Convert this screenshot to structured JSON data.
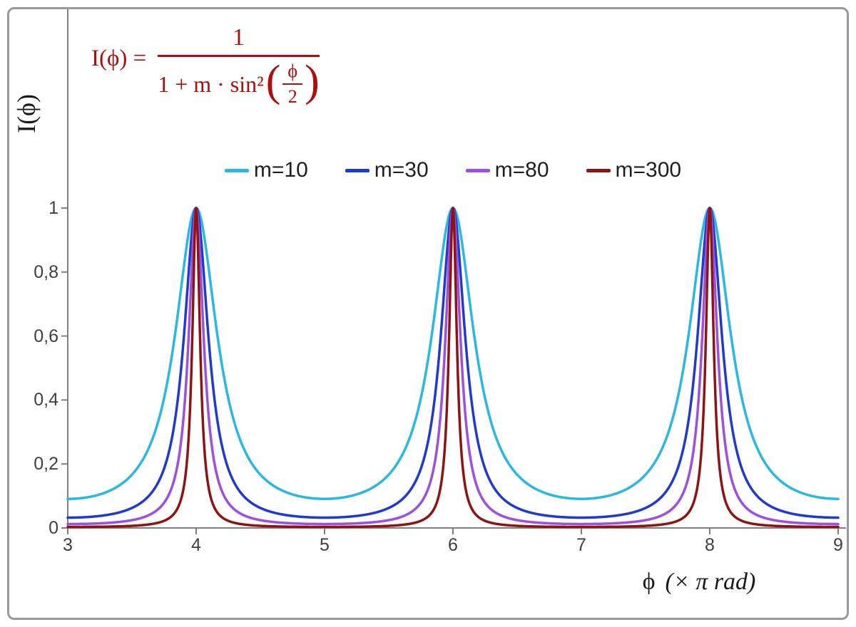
{
  "page": {
    "background": "#ffffff",
    "frame_color": "#9a9a9a"
  },
  "formula": {
    "lhs": "I(ϕ) =",
    "numerator": "1",
    "den_prefix": "1 + m · sin²",
    "inner_num": "ϕ",
    "inner_den": "2",
    "color": "#AE0E0E"
  },
  "axis": {
    "line_color": "#7f7f7f",
    "tick_text_color": "#3f3f3f"
  },
  "chart_data": {
    "type": "line",
    "function": "I(ϕ) = 1 / (1 + m·sin²(ϕ/2)), with ϕ plotted in units of π rad (peaks of height 1 at even multiples of π)",
    "x_axis": {
      "label_phi": "ϕ",
      "label_units": "(× π rad)",
      "range": [
        3,
        9
      ],
      "ticks": [
        {
          "value": 3,
          "label": "3"
        },
        {
          "value": 4,
          "label": "4"
        },
        {
          "value": 5,
          "label": "5"
        },
        {
          "value": 6,
          "label": "6"
        },
        {
          "value": 7,
          "label": "7"
        },
        {
          "value": 8,
          "label": "8"
        },
        {
          "value": 9,
          "label": "9"
        }
      ]
    },
    "y_axis": {
      "label": "I(ϕ)",
      "range": [
        0,
        1
      ],
      "ticks": [
        {
          "value": 0,
          "label": "0"
        },
        {
          "value": 0.2,
          "label": "0,2"
        },
        {
          "value": 0.4,
          "label": "0,4"
        },
        {
          "value": 0.6,
          "label": "0,6"
        },
        {
          "value": 0.8,
          "label": "0,8"
        },
        {
          "value": 1,
          "label": "1"
        }
      ]
    },
    "series": [
      {
        "label": "m=10",
        "m": 10,
        "color": "#29B7E8"
      },
      {
        "label": "m=30",
        "m": 30,
        "color": "#1F39D3"
      },
      {
        "label": "m=80",
        "m": 80,
        "color": "#9C4FE0"
      },
      {
        "label": "m=300",
        "m": 300,
        "color": "#8E1412"
      }
    ],
    "peaks_at_x": [
      4,
      6,
      8
    ],
    "peak_value": 1,
    "legend_position": "top-center",
    "grid": false
  }
}
